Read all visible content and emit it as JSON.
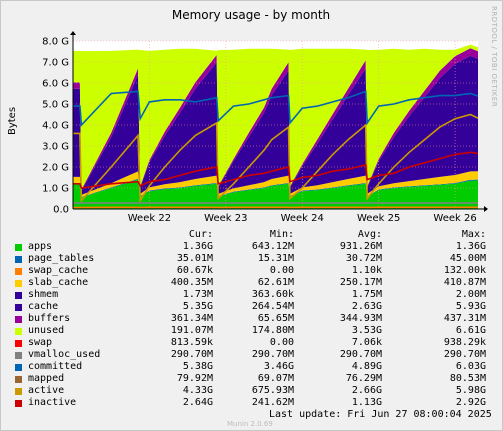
{
  "chart_data": {
    "type": "area",
    "title": "Memory usage - by month",
    "ylabel": "Bytes",
    "ylim": [
      0,
      8
    ],
    "y_unit": "G",
    "yticks": [
      "0.0",
      "1.0 G",
      "2.0 G",
      "3.0 G",
      "4.0 G",
      "5.0 G",
      "6.0 G",
      "7.0 G",
      "8.0 G"
    ],
    "xlim": [
      21.0,
      26.3
    ],
    "xticks": [
      {
        "label": "Week 22",
        "x": 22
      },
      {
        "label": "Week 23",
        "x": 23
      },
      {
        "label": "Week 24",
        "x": 24
      },
      {
        "label": "Week 25",
        "x": 25
      },
      {
        "label": "Week 26",
        "x": 26
      }
    ],
    "grid": true,
    "background_color": "#ffff00",
    "x": [
      21.0,
      21.09,
      21.11,
      21.5,
      21.85,
      21.88,
      22.0,
      22.2,
      22.4,
      22.6,
      22.88,
      22.9,
      23.1,
      23.3,
      23.5,
      23.6,
      23.82,
      23.84,
      24.0,
      24.2,
      24.4,
      24.6,
      24.83,
      24.85,
      25.0,
      25.2,
      25.4,
      25.6,
      25.8,
      26.0,
      26.2,
      26.3
    ],
    "stacked_series": [
      {
        "name": "apps",
        "color": "#00cc00",
        "values": [
          1.2,
          1.2,
          0.55,
          1.0,
          1.4,
          0.6,
          0.85,
          0.95,
          1.0,
          1.1,
          1.2,
          0.6,
          0.8,
          0.9,
          1.0,
          1.1,
          1.2,
          0.6,
          0.85,
          0.9,
          1.0,
          1.1,
          1.2,
          0.6,
          0.9,
          1.0,
          1.05,
          1.1,
          1.15,
          1.2,
          1.35,
          1.36
        ]
      },
      {
        "name": "page_tables",
        "color": "#0066b3",
        "values": [
          0.03,
          0.03,
          0.02,
          0.03,
          0.04,
          0.02,
          0.03,
          0.03,
          0.03,
          0.03,
          0.04,
          0.02,
          0.03,
          0.03,
          0.03,
          0.03,
          0.04,
          0.02,
          0.03,
          0.03,
          0.03,
          0.03,
          0.04,
          0.02,
          0.03,
          0.03,
          0.03,
          0.03,
          0.03,
          0.04,
          0.04,
          0.04
        ]
      },
      {
        "name": "swap_cache",
        "color": "#ff8000",
        "values": [
          0,
          0,
          0,
          0,
          0,
          0,
          0,
          0,
          0,
          0,
          0,
          0,
          0,
          0,
          0,
          0,
          0,
          0,
          0,
          0,
          0,
          0,
          0,
          0,
          0,
          0,
          0,
          0,
          0,
          0,
          0,
          0
        ]
      },
      {
        "name": "slab_cache",
        "color": "#ffcc00",
        "values": [
          0.3,
          0.3,
          0.1,
          0.2,
          0.35,
          0.1,
          0.15,
          0.2,
          0.25,
          0.3,
          0.35,
          0.1,
          0.15,
          0.2,
          0.25,
          0.3,
          0.35,
          0.1,
          0.15,
          0.2,
          0.25,
          0.3,
          0.35,
          0.1,
          0.15,
          0.2,
          0.25,
          0.3,
          0.35,
          0.38,
          0.4,
          0.4
        ]
      },
      {
        "name": "shmem",
        "color": "#330099",
        "values": [
          0,
          0,
          0,
          0,
          0,
          0,
          0,
          0,
          0,
          0,
          0,
          0,
          0,
          0,
          0,
          0,
          0,
          0,
          0,
          0,
          0,
          0,
          0,
          0,
          0,
          0,
          0,
          0,
          0,
          0,
          0,
          0
        ]
      },
      {
        "name": "cache",
        "color": "#330099",
        "values": [
          4.2,
          4.2,
          0.2,
          2.2,
          4.6,
          0.3,
          1.2,
          2.3,
          3.3,
          4.3,
          5.4,
          0.3,
          1.3,
          2.3,
          3.3,
          4.0,
          5.0,
          0.3,
          1.0,
          2.0,
          3.0,
          4.0,
          5.1,
          0.3,
          1.2,
          2.2,
          3.1,
          3.9,
          4.7,
          5.3,
          5.5,
          5.35
        ]
      },
      {
        "name": "buffers",
        "color": "#990099",
        "values": [
          0.3,
          0.3,
          0.05,
          0.2,
          0.3,
          0.05,
          0.1,
          0.2,
          0.25,
          0.3,
          0.35,
          0.05,
          0.1,
          0.2,
          0.25,
          0.3,
          0.4,
          0.05,
          0.1,
          0.2,
          0.25,
          0.3,
          0.4,
          0.05,
          0.1,
          0.2,
          0.25,
          0.3,
          0.35,
          0.36,
          0.36,
          0.36
        ]
      },
      {
        "name": "unused",
        "color": "#ccff00",
        "values": [
          1.5,
          1.5,
          6.6,
          3.9,
          0.9,
          6.5,
          5.2,
          3.9,
          2.8,
          1.6,
          0.2,
          6.5,
          5.2,
          4.0,
          2.8,
          1.9,
          0.6,
          6.5,
          5.5,
          4.3,
          3.1,
          1.9,
          0.5,
          6.5,
          5.2,
          4.0,
          2.9,
          2.0,
          1.0,
          0.3,
          0.18,
          0.19
        ]
      }
    ],
    "line_series": [
      {
        "name": "committed",
        "color": "#0066b3",
        "values": [
          4.9,
          4.9,
          4.0,
          5.5,
          5.6,
          4.3,
          5.1,
          5.2,
          5.2,
          5.1,
          5.3,
          4.2,
          4.9,
          5.0,
          5.2,
          5.3,
          5.4,
          4.1,
          4.8,
          4.9,
          5.1,
          5.3,
          5.6,
          4.1,
          4.9,
          5.0,
          5.2,
          5.3,
          5.4,
          5.4,
          5.5,
          5.38
        ]
      },
      {
        "name": "active",
        "color": "#cc9900",
        "values": [
          3.6,
          3.6,
          0.4,
          2.0,
          3.5,
          0.4,
          1.1,
          2.0,
          2.8,
          3.5,
          4.1,
          0.5,
          1.2,
          2.0,
          2.8,
          3.3,
          3.9,
          0.5,
          1.0,
          1.8,
          2.6,
          3.3,
          4.0,
          0.5,
          1.2,
          2.0,
          2.7,
          3.3,
          3.9,
          4.3,
          4.5,
          4.33
        ]
      },
      {
        "name": "inactive",
        "color": "#cc0000",
        "values": [
          1.2,
          1.2,
          1.0,
          1.2,
          1.3,
          1.1,
          1.3,
          1.4,
          1.6,
          1.8,
          2.0,
          1.2,
          1.4,
          1.6,
          1.7,
          1.8,
          2.0,
          1.3,
          1.5,
          1.6,
          1.8,
          1.9,
          2.1,
          1.4,
          1.6,
          1.7,
          2.0,
          2.2,
          2.4,
          2.6,
          2.7,
          2.64
        ]
      },
      {
        "name": "mapped",
        "color": "#ff8000",
        "values": [
          0.07,
          0.07,
          0.07,
          0.08,
          0.08,
          0.07,
          0.08,
          0.08,
          0.08,
          0.08,
          0.08,
          0.07,
          0.08,
          0.08,
          0.08,
          0.08,
          0.08,
          0.07,
          0.08,
          0.08,
          0.08,
          0.08,
          0.08,
          0.07,
          0.08,
          0.08,
          0.08,
          0.08,
          0.08,
          0.08,
          0.08,
          0.08
        ]
      },
      {
        "name": "vmalloc_used",
        "color": "#808080",
        "values": [
          0.29,
          0.29,
          0.29,
          0.29,
          0.29,
          0.29,
          0.29,
          0.29,
          0.29,
          0.29,
          0.29,
          0.29,
          0.29,
          0.29,
          0.29,
          0.29,
          0.29,
          0.29,
          0.29,
          0.29,
          0.29,
          0.29,
          0.29,
          0.29,
          0.29,
          0.29,
          0.29,
          0.29,
          0.29,
          0.29,
          0.29,
          0.29
        ]
      }
    ]
  },
  "legend": {
    "headers": {
      "cur": "Cur:",
      "min": "Min:",
      "avg": "Avg:",
      "max": "Max:"
    },
    "rows": [
      {
        "name": "apps",
        "color": "#00cc00",
        "cur": "1.36G",
        "min": "643.12M",
        "avg": "931.26M",
        "max": "1.36G"
      },
      {
        "name": "page_tables",
        "color": "#0066b3",
        "cur": "35.01M",
        "min": "15.31M",
        "avg": "30.72M",
        "max": "45.00M"
      },
      {
        "name": "swap_cache",
        "color": "#ff8000",
        "cur": "60.67k",
        "min": "0.00",
        "avg": "1.10k",
        "max": "132.00k"
      },
      {
        "name": "slab_cache",
        "color": "#ffcc00",
        "cur": "400.35M",
        "min": "62.61M",
        "avg": "250.17M",
        "max": "410.87M"
      },
      {
        "name": "shmem",
        "color": "#330099",
        "cur": "1.73M",
        "min": "363.60k",
        "avg": "1.75M",
        "max": "2.00M"
      },
      {
        "name": "cache",
        "color": "#330099",
        "cur": "5.35G",
        "min": "264.54M",
        "avg": "2.63G",
        "max": "5.93G"
      },
      {
        "name": "buffers",
        "color": "#990099",
        "cur": "361.34M",
        "min": "65.65M",
        "avg": "344.93M",
        "max": "437.31M"
      },
      {
        "name": "unused",
        "color": "#ccff00",
        "cur": "191.07M",
        "min": "174.80M",
        "avg": "3.53G",
        "max": "6.61G"
      },
      {
        "name": "swap",
        "color": "#ff0000",
        "cur": "813.59k",
        "min": "0.00",
        "avg": "7.06k",
        "max": "938.29k"
      },
      {
        "name": "vmalloc_used",
        "color": "#808080",
        "cur": "290.70M",
        "min": "290.70M",
        "avg": "290.70M",
        "max": "290.70M"
      },
      {
        "name": "committed",
        "color": "#0066b3",
        "cur": "5.38G",
        "min": "3.46G",
        "avg": "4.89G",
        "max": "6.03G"
      },
      {
        "name": "mapped",
        "color": "#996633",
        "cur": "79.92M",
        "min": "69.07M",
        "avg": "76.29M",
        "max": "80.53M"
      },
      {
        "name": "active",
        "color": "#cc9900",
        "cur": "4.33G",
        "min": "675.93M",
        "avg": "2.66G",
        "max": "5.98G"
      },
      {
        "name": "inactive",
        "color": "#cc0000",
        "cur": "2.64G",
        "min": "241.62M",
        "avg": "1.13G",
        "max": "2.92G"
      }
    ]
  },
  "last_update": "Last update: Fri Jun 27 08:00:04 2025",
  "footer": "Munin 2.0.69",
  "side_label": "RRDTOOL / TOBI OETIKER"
}
